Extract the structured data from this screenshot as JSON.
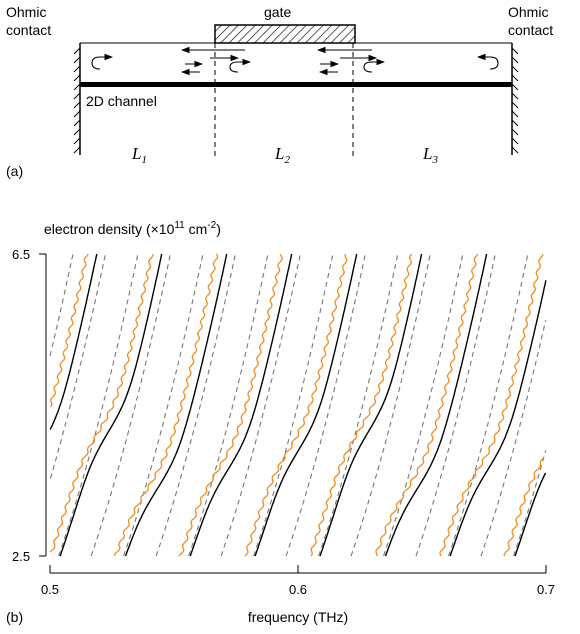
{
  "diagram": {
    "panel_label": "(a)",
    "left_contact_line1": "Ohmic",
    "left_contact_line2": "contact",
    "right_contact_line1": "Ohmic",
    "right_contact_line2": "contact",
    "gate_label": "gate",
    "channel_label": "2D channel",
    "sections": [
      {
        "letter": "L",
        "sub": "1"
      },
      {
        "letter": "L",
        "sub": "2"
      },
      {
        "letter": "L",
        "sub": "3"
      }
    ]
  },
  "chart_data": {
    "type": "line",
    "panel_label": "(b)",
    "ylabel": "electron density (×10",
    "ylabel_exp": "11",
    "ylabel_unit": "cm",
    "ylabel_unit_exp": "-2",
    "ylabel_close": ")",
    "xlabel": "frequency (THz)",
    "xlim": [
      0.5,
      0.7
    ],
    "ylim": [
      2.5,
      6.5
    ],
    "xticks": [
      "0.5",
      "0.6",
      "0.7"
    ],
    "yticks": [
      "2.5",
      "6.5"
    ],
    "series": [
      {
        "style": "black-solid",
        "color": "#000000",
        "mode_count": 12
      },
      {
        "style": "orange",
        "color": "#f28c1e",
        "mode_count": 11
      },
      {
        "style": "gray-dashed",
        "color": "#777777",
        "mode_count": 24
      }
    ]
  }
}
